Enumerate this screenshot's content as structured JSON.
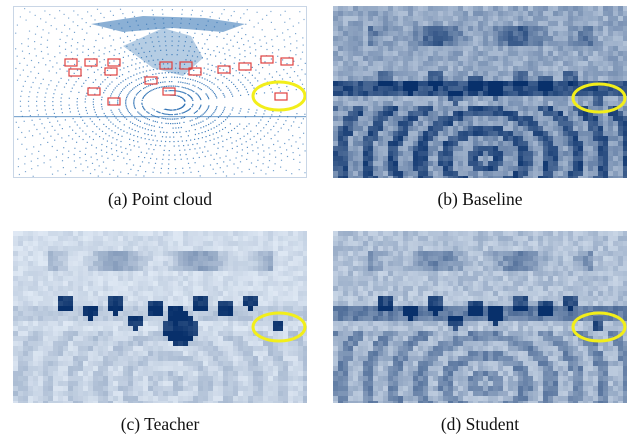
{
  "figure": {
    "panels": [
      {
        "id": "a",
        "caption": "(a)  Point cloud",
        "kind": "point-cloud"
      },
      {
        "id": "b",
        "caption": "(b)  Baseline",
        "kind": "heatmap"
      },
      {
        "id": "c",
        "caption": "(c)  Teacher",
        "kind": "heatmap"
      },
      {
        "id": "d",
        "caption": "(d)  Student",
        "kind": "heatmap"
      }
    ],
    "colors": {
      "point_blue": "#2b6fb3",
      "heat_dark": "#08306b",
      "heat_light": "#eaf2fb",
      "box_red": "#e0413f",
      "highlight_yellow": "#f2ee1a"
    }
  }
}
